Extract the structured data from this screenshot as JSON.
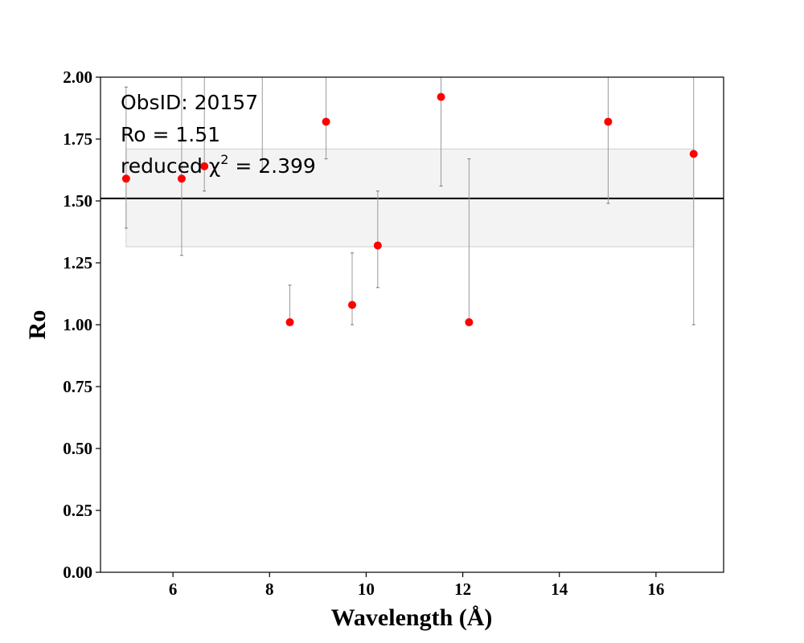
{
  "chart_data": {
    "type": "scatter",
    "xlabel": "Wavelength (Å)",
    "ylabel": "Ro",
    "xlim": [
      4.5,
      17.4
    ],
    "ylim": [
      0.0,
      2.0
    ],
    "xticks": [
      6,
      8,
      10,
      12,
      14,
      16
    ],
    "yticks": [
      0.0,
      0.25,
      0.5,
      0.75,
      1.0,
      1.25,
      1.5,
      1.75,
      2.0
    ],
    "xtick_labels": [
      "6",
      "8",
      "10",
      "12",
      "14",
      "16"
    ],
    "ytick_labels": [
      "0.00",
      "0.25",
      "0.50",
      "0.75",
      "1.00",
      "1.25",
      "1.50",
      "1.75",
      "2.00"
    ],
    "grid": false,
    "series": [
      {
        "color": "#ff0000",
        "points": [
          {
            "x": 5.03,
            "y": 1.59,
            "ylo": 1.39,
            "yhi": 1.96
          },
          {
            "x": 6.18,
            "y": 1.59,
            "ylo": 1.28,
            "yhi": 2.3
          },
          {
            "x": 6.65,
            "y": 1.64,
            "ylo": 1.54,
            "yhi": 2.3
          },
          {
            "x": 8.42,
            "y": 1.01,
            "ylo": 1.01,
            "yhi": 1.16
          },
          {
            "x": 9.17,
            "y": 1.82,
            "ylo": 1.67,
            "yhi": 2.3
          },
          {
            "x": 9.71,
            "y": 1.08,
            "ylo": 1.0,
            "yhi": 1.29
          },
          {
            "x": 10.24,
            "y": 1.32,
            "ylo": 1.15,
            "yhi": 1.54
          },
          {
            "x": 11.55,
            "y": 1.92,
            "ylo": 1.56,
            "yhi": 2.3
          },
          {
            "x": 12.13,
            "y": 1.01,
            "ylo": 1.01,
            "yhi": 1.67
          },
          {
            "x": 15.01,
            "y": 1.82,
            "ylo": 1.49,
            "yhi": 2.3
          },
          {
            "x": 16.78,
            "y": 1.69,
            "ylo": 1.0,
            "yhi": 2.3
          }
        ]
      }
    ],
    "error_segments": [
      {
        "x": 7.85,
        "ylo": 1.62,
        "yhi": 2.3
      }
    ],
    "reference_line": {
      "y": 1.51,
      "color": "#000000"
    },
    "band": {
      "y1": 1.315,
      "y2": 1.71,
      "x1": 5.03,
      "x2": 16.78,
      "fill": "#f3f3f3",
      "edge": "#d0d0d0"
    },
    "annotations": {
      "obsid": "ObsID: 20157",
      "ro": "Ro = 1.51",
      "chi_prefix": "reduced χ",
      "chi_sup": "2",
      "chi_suffix": " = 2.399"
    }
  }
}
